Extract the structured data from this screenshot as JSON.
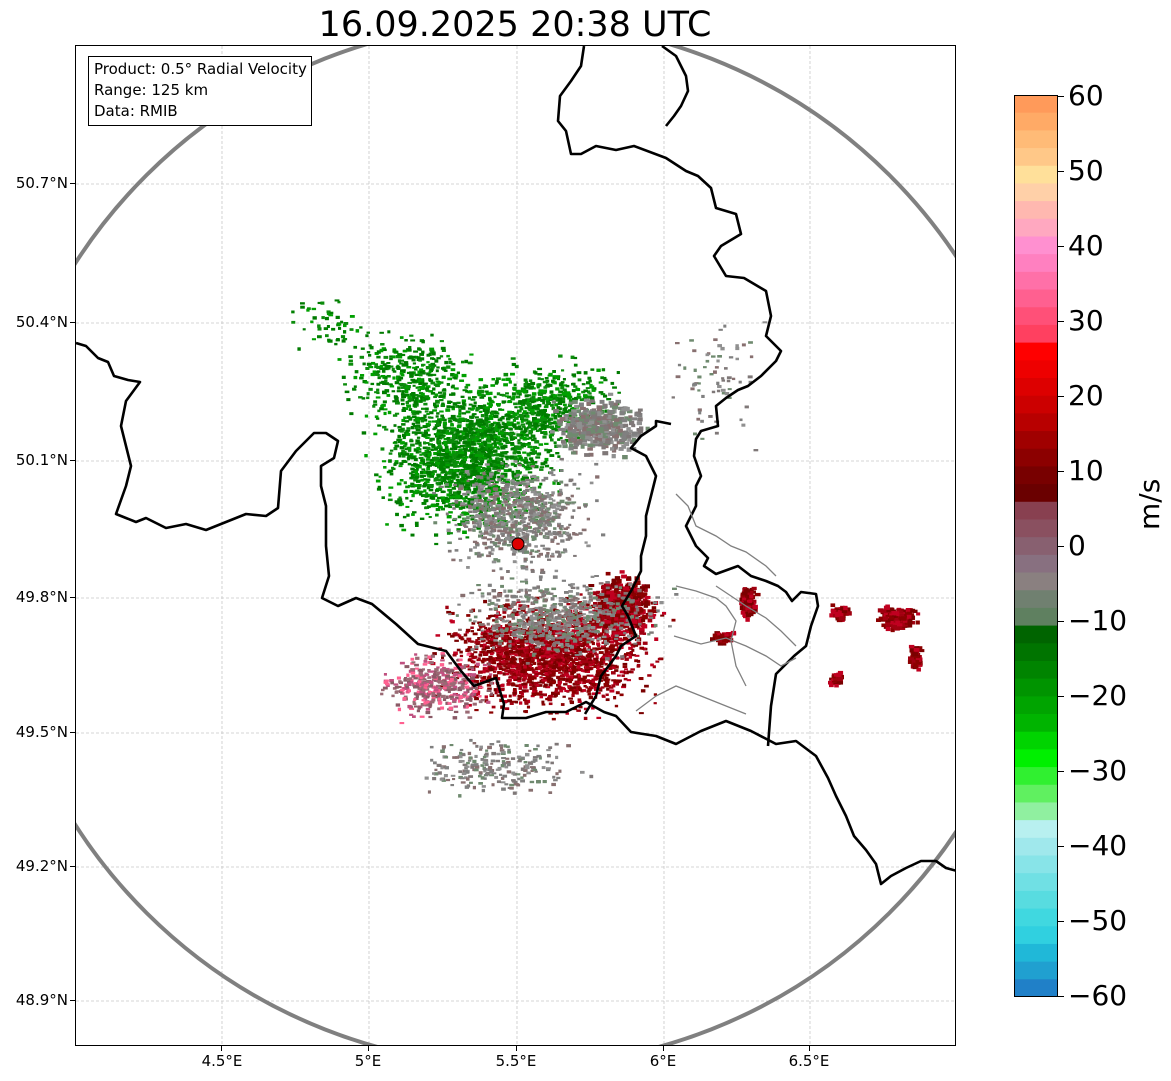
{
  "title": "16.09.2025 20:38 UTC",
  "info": {
    "product": "Product: 0.5° Radial Velocity",
    "range": "Range: 125 km",
    "data": "Data: RMIB"
  },
  "axes": {
    "lat_labels": [
      "50.7°N",
      "50.4°N",
      "50.1°N",
      "49.8°N",
      "49.5°N",
      "49.2°N",
      "48.9°N"
    ],
    "lon_labels": [
      "4.5°E",
      "5°E",
      "5.5°E",
      "6°E",
      "6.5°E"
    ]
  },
  "colorbar": {
    "unit": "m/s",
    "tick_labels": [
      "60",
      "50",
      "40",
      "30",
      "20",
      "10",
      "0",
      "−10",
      "−20",
      "−30",
      "−40",
      "−50",
      "−60"
    ],
    "range": [
      -60,
      60
    ],
    "colors_top_to_bottom": [
      "#ff9a5a",
      "#ffaa66",
      "#ffbb77",
      "#ffc888",
      "#ffe09a",
      "#ffd0a8",
      "#ffb8b0",
      "#ffa8c0",
      "#ff90d0",
      "#ff80c0",
      "#ff70a8",
      "#ff6090",
      "#ff5078",
      "#ff4060",
      "#ff0000",
      "#ee0000",
      "#dd0000",
      "#cc0000",
      "#b80000",
      "#a00000",
      "#8c0000",
      "#780000",
      "#6a0000",
      "#884050",
      "#8a5060",
      "#886070",
      "#887080",
      "#8a8080",
      "#708070",
      "#5f8060",
      "#006400",
      "#007400",
      "#008400",
      "#009400",
      "#00a400",
      "#00b400",
      "#00d400",
      "#00f000",
      "#30f030",
      "#60f060",
      "#90f0a0",
      "#b8f0f0",
      "#a0e8ec",
      "#88e4e8",
      "#70e0e4",
      "#58dce0",
      "#40d8e0",
      "#30d0e0",
      "#20b8d8",
      "#20a0d0",
      "#2080c8"
    ]
  },
  "map_colors": {
    "approaching": "#008000",
    "receding": "#8b0000",
    "near_zero": "#808080",
    "border": "#000000",
    "range_ring": "#808080",
    "radar_site": "#dd0000"
  },
  "radar_site": {
    "lon": 5.505,
    "lat": 49.914
  }
}
